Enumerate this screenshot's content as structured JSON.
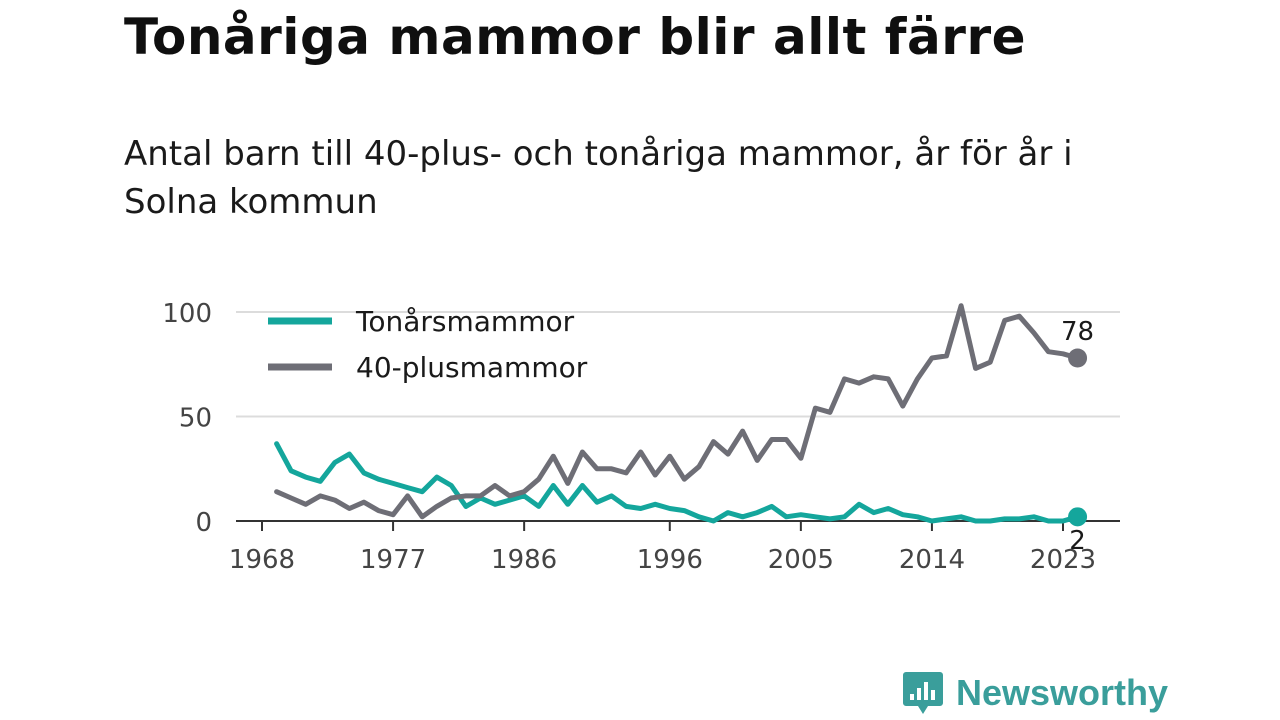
{
  "header": {
    "title": "Tonåriga mammor blir allt färre",
    "subtitle": "Antal barn till 40-plus- och tonåriga mammor, år för år i Solna kommun"
  },
  "brand": {
    "name": "Newsworthy",
    "icon": "newsworthy-logo-icon"
  },
  "colors": {
    "teen": "#14a69c",
    "plus40": "#6e6e76",
    "grid": "#dcdcdc",
    "axis": "#333333"
  },
  "chart_data": {
    "type": "line",
    "title": "Tonåriga mammor blir allt färre",
    "subtitle": "Antal barn till 40-plus- och tonåriga mammor, år för år i Solna kommun",
    "xlabel": "",
    "ylabel": "",
    "ylim": [
      0,
      100
    ],
    "yticks": [
      0,
      50,
      100
    ],
    "xticks": [
      1968,
      1977,
      1986,
      1996,
      2005,
      2014,
      2023
    ],
    "grid": true,
    "legend": "top-left",
    "x": [
      1969,
      1970,
      1971,
      1972,
      1973,
      1974,
      1975,
      1976,
      1977,
      1978,
      1979,
      1980,
      1981,
      1982,
      1983,
      1984,
      1985,
      1986,
      1987,
      1988,
      1989,
      1990,
      1991,
      1992,
      1993,
      1994,
      1995,
      1996,
      1997,
      1998,
      1999,
      2000,
      2001,
      2002,
      2003,
      2004,
      2005,
      2006,
      2007,
      2008,
      2009,
      2010,
      2011,
      2012,
      2013,
      2014,
      2015,
      2016,
      2017,
      2018,
      2019,
      2020,
      2021,
      2022,
      2023,
      2024
    ],
    "series": [
      {
        "name": "Tonårsmammor",
        "color": "#14a69c",
        "values": [
          37,
          24,
          21,
          19,
          28,
          32,
          23,
          20,
          18,
          16,
          14,
          21,
          17,
          7,
          11,
          8,
          10,
          12,
          7,
          17,
          8,
          17,
          9,
          12,
          7,
          6,
          8,
          6,
          5,
          2,
          0,
          4,
          2,
          4,
          7,
          2,
          3,
          2,
          1,
          2,
          8,
          4,
          6,
          3,
          2,
          0,
          1,
          2,
          0,
          0,
          1,
          1,
          2,
          0,
          0,
          2
        ],
        "end_label": "2"
      },
      {
        "name": "40-plusmammor",
        "color": "#6e6e76",
        "values": [
          14,
          11,
          8,
          12,
          10,
          6,
          9,
          5,
          3,
          12,
          2,
          7,
          11,
          12,
          12,
          17,
          12,
          14,
          20,
          31,
          18,
          33,
          25,
          25,
          23,
          33,
          22,
          31,
          20,
          26,
          38,
          32,
          43,
          29,
          39,
          39,
          30,
          54,
          52,
          68,
          66,
          69,
          68,
          55,
          68,
          78,
          79,
          103,
          73,
          76,
          96,
          98,
          90,
          81,
          80,
          78
        ],
        "end_label": "78"
      }
    ]
  }
}
